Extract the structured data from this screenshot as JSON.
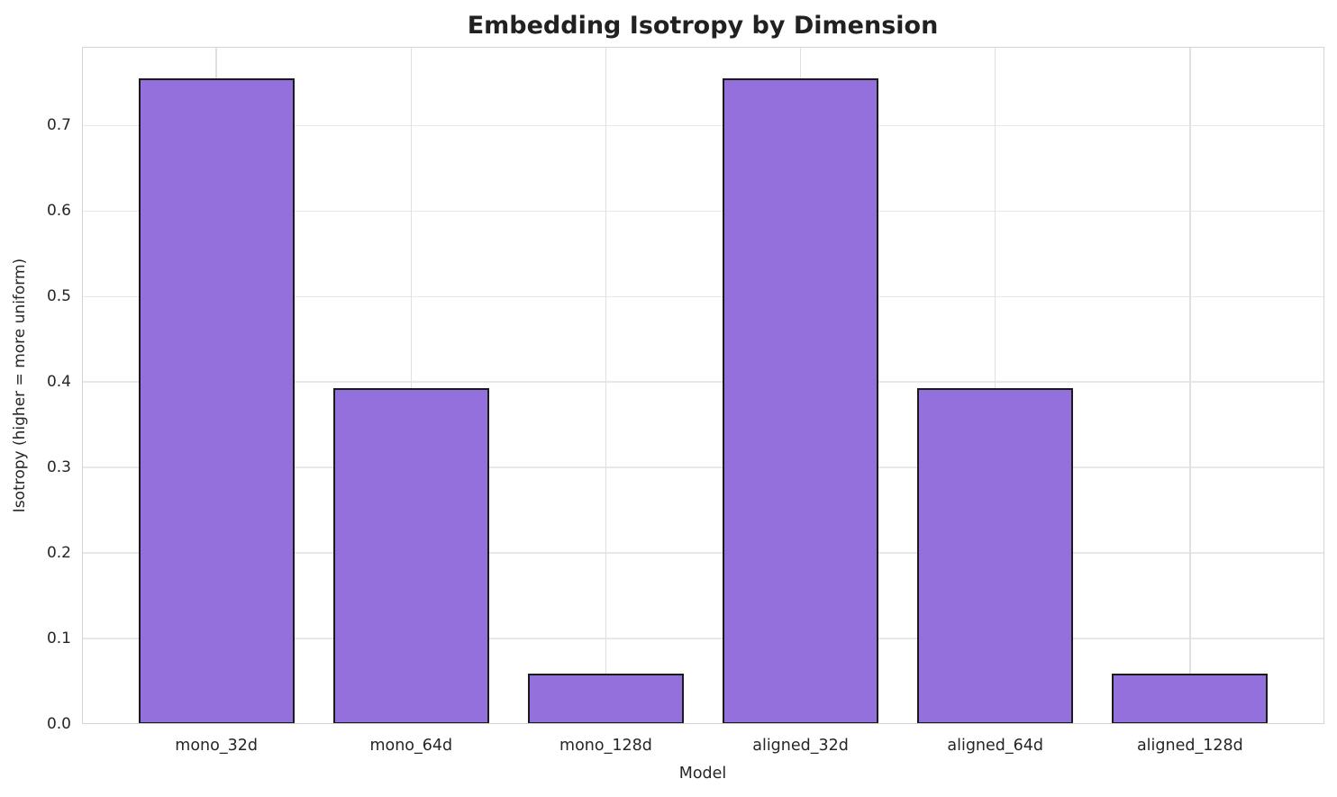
{
  "chart_data": {
    "type": "bar",
    "title": "Embedding Isotropy by Dimension",
    "xlabel": "Model",
    "ylabel": "Isotropy (higher = more uniform)",
    "categories": [
      "mono_32d",
      "mono_64d",
      "mono_128d",
      "aligned_32d",
      "aligned_64d",
      "aligned_128d"
    ],
    "values": [
      0.755,
      0.393,
      0.059,
      0.755,
      0.393,
      0.059
    ],
    "ylim": [
      0,
      0.792
    ],
    "yticks": [
      0.0,
      0.1,
      0.2,
      0.3,
      0.4,
      0.5,
      0.6,
      0.7
    ],
    "ytick_labels": [
      "0.0",
      "0.1",
      "0.2",
      "0.3",
      "0.4",
      "0.5",
      "0.6",
      "0.7"
    ],
    "grid": true,
    "legend": "none",
    "colors": {
      "bar_fill": "#9370DB",
      "bar_edge": "#1a1a1a",
      "gridline": "#e8e8e8",
      "frame": "#d4d4d4",
      "text": "#262626",
      "title_text": "#212121",
      "background": "#ffffff"
    }
  }
}
